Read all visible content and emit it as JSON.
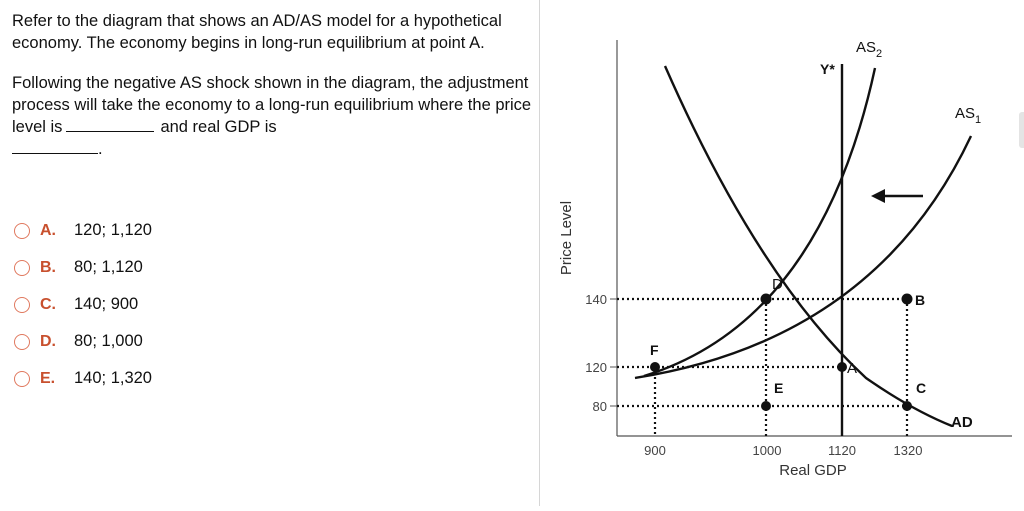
{
  "question": {
    "paragraph1": "Refer to the diagram that shows an AD/AS model for a hypothetical economy. The economy begins in long-run equilibrium at point A.",
    "paragraph2_part1": "Following the negative AS shock shown in the diagram, the adjustment process will take the economy to a long-run equilibrium where the price level is",
    "paragraph2_part2": "and real GDP is",
    "paragraph2_end": "."
  },
  "options": [
    {
      "letter": "A.",
      "text": "120; 1,120"
    },
    {
      "letter": "B.",
      "text": "80; 1,120"
    },
    {
      "letter": "C.",
      "text": "140; 900"
    },
    {
      "letter": "D.",
      "text": "80; 1,000"
    },
    {
      "letter": "E.",
      "text": "140; 1,320"
    }
  ],
  "diagram": {
    "y_axis_label": "Price Level",
    "x_axis_label": "Real GDP",
    "y_ticks": [
      "140",
      "120",
      "80"
    ],
    "x_ticks": [
      "900",
      "1000",
      "1120",
      "1320"
    ],
    "curve_labels": {
      "as2": "AS",
      "as2_sub": "2",
      "as1": "AS",
      "as1_sub": "1",
      "ad": "AD",
      "ystar": "Y*"
    },
    "points": {
      "A": "A",
      "B": "B",
      "C": "C",
      "D": "D",
      "E": "E",
      "F": "F"
    }
  },
  "colors": {
    "option_letter": "#c8502e",
    "radio_border": "#e0795f",
    "divider": "#d6d6d6"
  }
}
